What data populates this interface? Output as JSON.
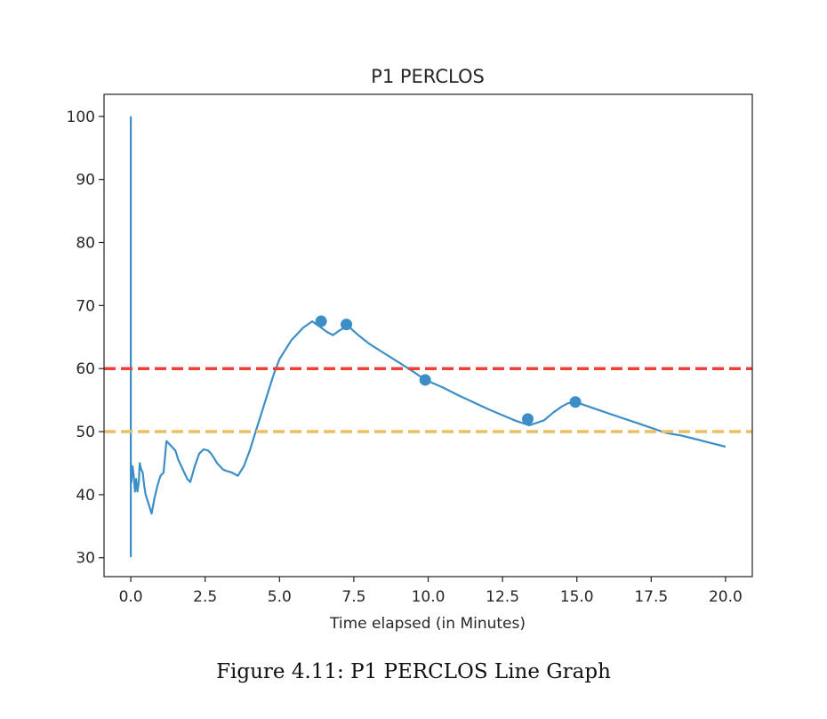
{
  "chart_data": {
    "type": "line",
    "title": "P1 PERCLOS",
    "xlabel": "Time elapsed (in Minutes)",
    "ylabel": "",
    "xlim": [
      -0.9,
      20.9
    ],
    "ylim": [
      27,
      103.5
    ],
    "xticks": [
      0.0,
      2.5,
      5.0,
      7.5,
      10.0,
      12.5,
      15.0,
      17.5,
      20.0
    ],
    "xtick_labels": [
      "0.0",
      "2.5",
      "5.0",
      "7.5",
      "10.0",
      "12.5",
      "15.0",
      "17.5",
      "20.0"
    ],
    "yticks": [
      30,
      40,
      50,
      60,
      70,
      80,
      90,
      100
    ],
    "ytick_labels": [
      "30",
      "40",
      "50",
      "60",
      "70",
      "80",
      "90",
      "100"
    ],
    "grid": false,
    "series": [
      {
        "color": "#3c8fc6",
        "style": "solid",
        "x": [
          0.0,
          0.0,
          0.0,
          0.0,
          0.02,
          0.06,
          0.1,
          0.14,
          0.18,
          0.22,
          0.27,
          0.3,
          0.35,
          0.4,
          0.45,
          0.5,
          0.6,
          0.7,
          0.8,
          0.9,
          1.0,
          1.1,
          1.2,
          1.3,
          1.4,
          1.5,
          1.6,
          1.75,
          1.9,
          2.0,
          2.15,
          2.3,
          2.45,
          2.6,
          2.7,
          2.8,
          2.9,
          3.0,
          3.1,
          3.2,
          3.4,
          3.6,
          3.8,
          4.0,
          4.2,
          4.4,
          4.6,
          4.8,
          5.0,
          5.4,
          5.8,
          6.1,
          6.4,
          6.6,
          6.8,
          7.0,
          7.3,
          7.6,
          8.0,
          8.5,
          9.0,
          9.5,
          9.9,
          10.5,
          11.0,
          11.5,
          12.0,
          12.5,
          12.9,
          13.4,
          13.9,
          14.2,
          14.5,
          14.7,
          14.95,
          15.5,
          16.0,
          16.5,
          17.0,
          17.5,
          18.0,
          18.5,
          19.0,
          19.5,
          20.0
        ],
        "y": [
          100.0,
          30.2,
          42.0,
          45.5,
          42.0,
          44.5,
          43.0,
          40.5,
          42.5,
          40.5,
          42.0,
          45.0,
          44.0,
          43.5,
          41.5,
          40.0,
          38.5,
          37.0,
          39.5,
          41.5,
          43.0,
          43.5,
          48.5,
          48.0,
          47.5,
          47.0,
          45.5,
          44.0,
          42.5,
          42.0,
          44.5,
          46.5,
          47.2,
          47.0,
          46.5,
          45.8,
          45.0,
          44.5,
          44.0,
          43.8,
          43.5,
          43.0,
          44.5,
          47.0,
          50.0,
          53.0,
          56.0,
          59.0,
          61.5,
          64.5,
          66.5,
          67.5,
          66.5,
          65.8,
          65.3,
          66.0,
          66.8,
          65.5,
          64.0,
          62.5,
          61.0,
          59.5,
          58.2,
          57.0,
          55.8,
          54.7,
          53.6,
          52.6,
          51.8,
          51.0,
          51.8,
          53.0,
          54.0,
          54.5,
          54.7,
          53.8,
          53.0,
          52.2,
          51.4,
          50.6,
          49.8,
          49.4,
          48.8,
          48.2,
          47.6
        ]
      },
      {
        "color": "#3c8fc6",
        "style": "markers",
        "x": [
          6.4,
          7.25,
          9.9,
          13.35,
          14.95
        ],
        "y": [
          67.5,
          67.0,
          58.2,
          52.0,
          54.7
        ]
      },
      {
        "color": "#ef4136",
        "style": "dashed",
        "x": [
          -0.9,
          20.9
        ],
        "y": [
          60,
          60
        ]
      },
      {
        "color": "#ecbf60",
        "style": "dashed",
        "x": [
          -0.9,
          20.9
        ],
        "y": [
          50,
          50
        ]
      }
    ]
  },
  "caption": "Figure 4.11: P1 PERCLOS Line Graph"
}
